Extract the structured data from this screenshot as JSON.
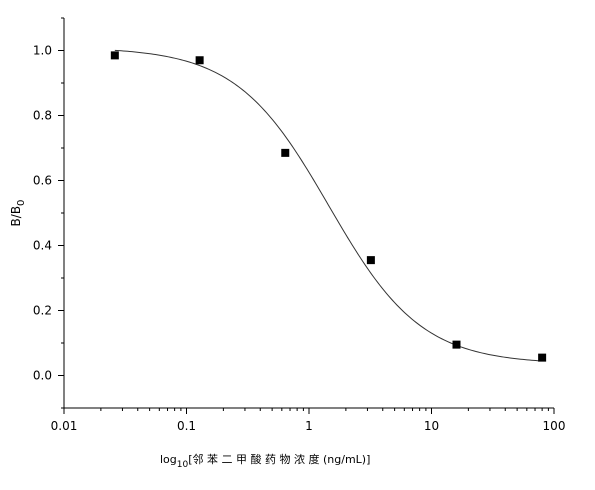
{
  "chart_data": {
    "type": "scatter",
    "title": "",
    "xlabel_prefix": "log",
    "xlabel_sub": "10",
    "xlabel_rest": "[邻 苯 二 甲 酸 药 物 浓 度 (ng/mL)]",
    "ylabel_main": "B/B",
    "ylabel_sub": "0",
    "x_scale": "log",
    "xlim": [
      0.01,
      100
    ],
    "ylim": [
      -0.1,
      1.1
    ],
    "x_ticks": [
      0.01,
      0.1,
      1,
      10,
      100
    ],
    "x_tick_labels": [
      "0.01",
      "0.1",
      "1",
      "10",
      "100"
    ],
    "y_ticks": [
      0.0,
      0.2,
      0.4,
      0.6,
      0.8,
      1.0
    ],
    "y_tick_labels": [
      "0.0",
      "0.2",
      "0.4",
      "0.6",
      "0.8",
      "1.0"
    ],
    "grid": false,
    "series": [
      {
        "marker": "square",
        "x": [
          0.026,
          0.128,
          0.64,
          3.2,
          16,
          80
        ],
        "y": [
          0.985,
          0.97,
          0.685,
          0.355,
          0.095,
          0.055
        ]
      }
    ],
    "fit_curve": {
      "type": "4PL",
      "top": 1.01,
      "bottom": 0.035,
      "ic50": 1.45,
      "hill": 1.15
    }
  }
}
